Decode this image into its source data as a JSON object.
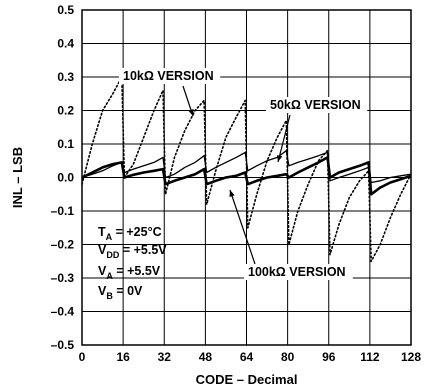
{
  "chart_data": {
    "type": "line",
    "title": "",
    "xlabel": "CODE – Decimal",
    "ylabel": "INL – LSB",
    "xlim": [
      0,
      128
    ],
    "ylim": [
      -0.5,
      0.5
    ],
    "x_ticks": [
      "0",
      "16",
      "32",
      "48",
      "64",
      "80",
      "96",
      "112",
      "128"
    ],
    "y_ticks": [
      "0.5",
      "0.4",
      "0.3",
      "0.2",
      "0.1",
      "0.0",
      "–0.1",
      "–0.2",
      "–0.3",
      "–0.4",
      "–0.5"
    ],
    "grid": true,
    "conditions": {
      "ta": {
        "main": "T",
        "sub": "A",
        "rest": " = +25°C"
      },
      "vdd": {
        "main": "V",
        "sub": "DD",
        "rest": " = +5.5V"
      },
      "va": {
        "main": "V",
        "sub": "A",
        "rest": " = +5.5V"
      },
      "vb": {
        "main": "V",
        "sub": "B",
        "rest": " = 0V"
      }
    },
    "annotations": {
      "ten_k": "10kΩ VERSION",
      "fifty_k": "50kΩ VERSION",
      "hundred_k": "100kΩ VERSION"
    },
    "series": [
      {
        "label_key": "ten_k",
        "style": "dotted",
        "x": [
          0,
          4,
          8,
          12,
          15.5,
          16.5,
          20,
          24,
          28,
          31.5,
          32.5,
          36,
          40,
          44,
          47.5,
          48.5,
          52,
          56,
          60,
          63.5,
          64.5,
          68,
          72,
          76,
          79.5,
          80.5,
          84,
          88,
          92,
          95.5,
          96.5,
          100,
          104,
          108,
          111.5,
          112.5,
          116,
          120,
          124,
          128
        ],
        "y": [
          -0.02,
          0.1,
          0.2,
          0.25,
          0.3,
          0.0,
          0.04,
          0.12,
          0.2,
          0.26,
          -0.05,
          0.06,
          0.14,
          0.2,
          0.23,
          -0.08,
          0.02,
          0.12,
          0.18,
          0.23,
          -0.15,
          -0.05,
          0.05,
          0.12,
          0.17,
          -0.2,
          -0.1,
          -0.02,
          0.05,
          0.08,
          -0.23,
          -0.14,
          -0.06,
          -0.01,
          0.02,
          -0.25,
          -0.2,
          -0.12,
          -0.05,
          0.01
        ]
      },
      {
        "label_key": "fifty_k",
        "style": "solid",
        "x": [
          0,
          4,
          8,
          12,
          15.5,
          16.5,
          20,
          24,
          28,
          31.5,
          32.5,
          36,
          40,
          44,
          47.5,
          48.5,
          52,
          56,
          60,
          63.5,
          64.5,
          68,
          72,
          76,
          79.5,
          80.5,
          84,
          88,
          92,
          95.5,
          96.5,
          100,
          104,
          108,
          111.5,
          112.5,
          116,
          120,
          124,
          128
        ],
        "y": [
          0.0,
          0.01,
          0.02,
          0.035,
          0.045,
          0.015,
          0.025,
          0.035,
          0.045,
          0.06,
          0.0,
          0.01,
          0.03,
          0.045,
          0.065,
          0.015,
          0.03,
          0.045,
          0.06,
          0.075,
          0.02,
          0.035,
          0.05,
          0.06,
          0.08,
          0.035,
          0.045,
          0.055,
          0.065,
          0.075,
          -0.01,
          0.0,
          0.01,
          0.02,
          0.03,
          -0.015,
          -0.01,
          0.0,
          0.005,
          0.01
        ]
      },
      {
        "label_key": "hundred_k",
        "style": "solid-thick",
        "x": [
          0,
          4,
          8,
          12,
          15.5,
          16.5,
          20,
          24,
          28,
          31.5,
          32.5,
          36,
          40,
          44,
          47.5,
          48.5,
          52,
          56,
          60,
          63.5,
          64.5,
          68,
          72,
          76,
          79.5,
          80.5,
          84,
          88,
          92,
          95.5,
          96.5,
          100,
          104,
          108,
          111.5,
          112.5,
          116,
          120,
          124,
          128
        ],
        "y": [
          0.0,
          0.015,
          0.03,
          0.04,
          0.045,
          0.0,
          0.008,
          0.015,
          0.02,
          0.025,
          -0.02,
          -0.01,
          0.0,
          0.01,
          0.025,
          -0.02,
          -0.01,
          0.0,
          0.005,
          0.015,
          -0.02,
          -0.01,
          0.0,
          0.005,
          0.01,
          0.0,
          0.015,
          0.03,
          0.045,
          0.06,
          0.0,
          0.015,
          0.025,
          0.035,
          0.045,
          -0.05,
          -0.03,
          -0.015,
          -0.005,
          0.005
        ]
      }
    ]
  }
}
